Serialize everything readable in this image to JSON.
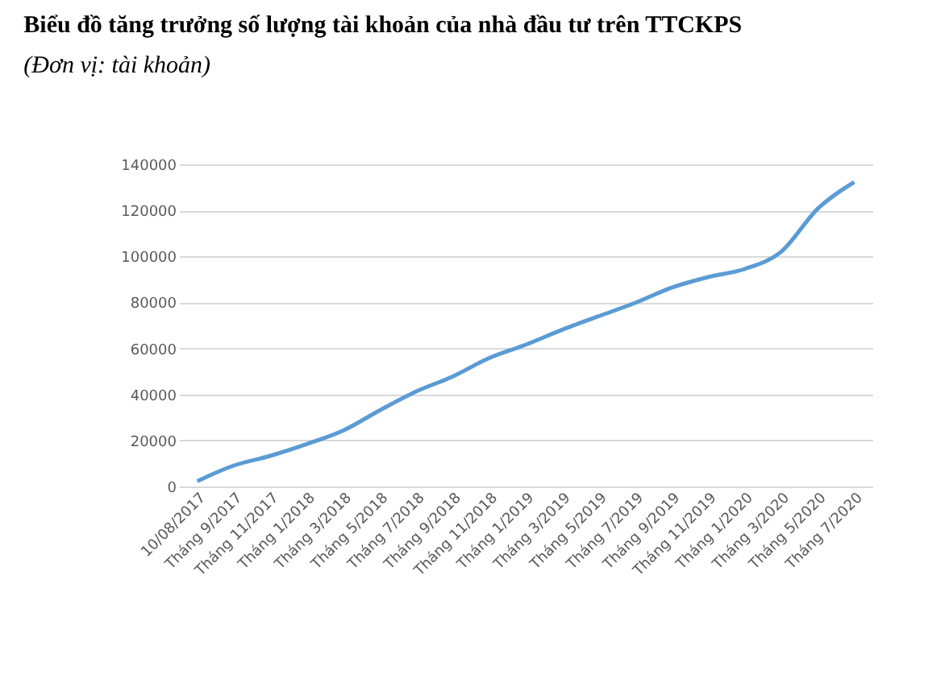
{
  "chart_data": {
    "type": "line",
    "title": "Biểu đồ tăng trưởng số lượng tài khoản của nhà đầu tư trên TTCKPS",
    "subtitle": "(Đơn vị: tài khoản)",
    "categories": [
      "10/08/2017",
      "Tháng 9/2017",
      "Tháng 11/2017",
      "Tháng 1/2018",
      "Tháng 3/2018",
      "Tháng 5/2018",
      "Tháng 7/2018",
      "Tháng 9/2018",
      "Tháng 11/2018",
      "Tháng 1/2019",
      "Tháng 3/2019",
      "Tháng 5/2019",
      "Tháng 7/2019",
      "Tháng 9/2019",
      "Tháng 11/2019",
      "Tháng 1/2020",
      "Tháng 3/2020",
      "Tháng 5/2020",
      "Tháng 7/2020"
    ],
    "series": [
      {
        "color": "#5b9bd5",
        "values": [
          2300,
          9100,
          13300,
          18400,
          24300,
          33100,
          41300,
          47800,
          55800,
          61600,
          68100,
          74000,
          79800,
          86400,
          91000,
          94500,
          102000,
          120700,
          132300
        ]
      }
    ],
    "ylim": [
      0,
      140000
    ],
    "yticks": [
      0,
      20000,
      40000,
      60000,
      80000,
      100000,
      120000,
      140000
    ],
    "grid": "y",
    "marker": "none",
    "line_style": "solid"
  }
}
